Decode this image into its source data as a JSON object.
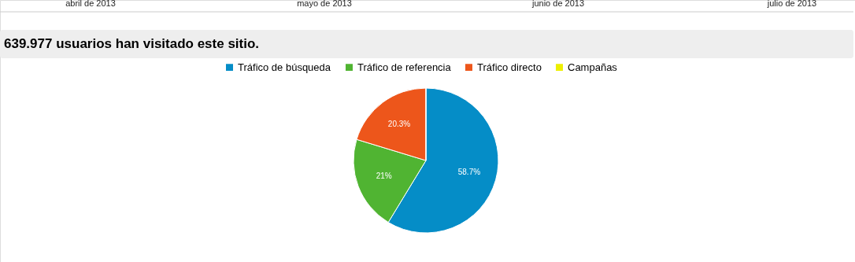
{
  "chart_data": {
    "type": "pie",
    "title": "639.977 usuarios han visitado este sitio.",
    "categories": [
      "Tráfico de búsqueda",
      "Tráfico de referencia",
      "Tráfico directo",
      "Campañas"
    ],
    "values": [
      58.7,
      21,
      20.3,
      0
    ],
    "colors": [
      "#058dc7",
      "#50b432",
      "#ed561b",
      "#edef00"
    ],
    "value_labels": [
      "58.7%",
      "21%",
      "20.3%",
      null
    ],
    "legend": "top",
    "annotations": [
      "abril de 2013",
      "mayo de 2013",
      "junio de 2013",
      "julio de 2013"
    ]
  }
}
